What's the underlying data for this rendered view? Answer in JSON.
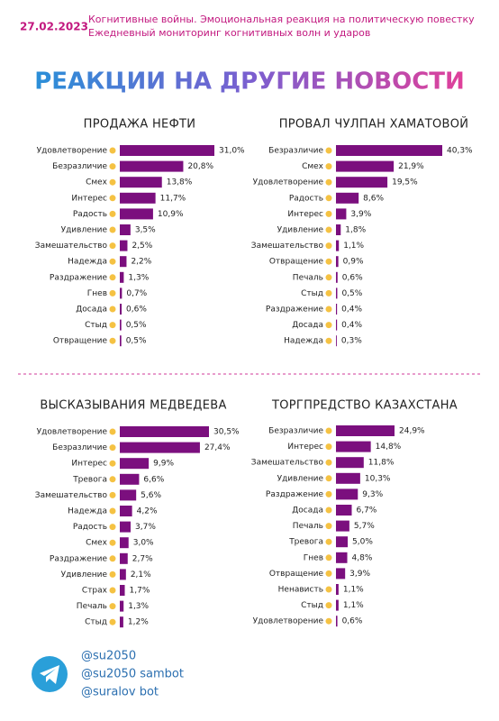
{
  "header": {
    "date": "27.02.2023",
    "line1": "Когнитивные войны. Эмоциональная реакция на политическую повестку",
    "line2": "Ежедневный мониторинг когнитивных волн и ударов"
  },
  "title": "РЕАКЦИИ НА ДРУГИЕ НОВОСТИ",
  "chart_data": [
    {
      "type": "bar",
      "orientation": "horizontal",
      "title": "ПРОДАЖА НЕФТИ",
      "color": "#7b0f7e",
      "categories": [
        "Удовлетворение",
        "Безразличие",
        "Смех",
        "Интерес",
        "Радость",
        "Удивление",
        "Замешательство",
        "Надежда",
        "Раздражение",
        "Гнев",
        "Досада",
        "Стыд",
        "Отвращение"
      ],
      "values": [
        31.0,
        20.8,
        13.8,
        11.7,
        10.9,
        3.5,
        2.5,
        2.2,
        1.3,
        0.7,
        0.6,
        0.5,
        0.5
      ],
      "value_labels": [
        "31,0%",
        "20,8%",
        "13,8%",
        "11,7%",
        "10,9%",
        "3,5%",
        "2,5%",
        "2,2%",
        "1,3%",
        "0,7%",
        "0,6%",
        "0,5%",
        "0,5%"
      ]
    },
    {
      "type": "bar",
      "orientation": "horizontal",
      "title": "ПРОВАЛ ЧУЛПАН ХАМАТОВОЙ",
      "color": "#7b0f7e",
      "categories": [
        "Безразличие",
        "Смех",
        "Удовлетворение",
        "Радость",
        "Интерес",
        "Удивление",
        "Замешательство",
        "Отвращение",
        "Печаль",
        "Стыд",
        "Раздражение",
        "Досада",
        "Надежда"
      ],
      "values": [
        40.3,
        21.9,
        19.5,
        8.6,
        3.9,
        1.8,
        1.1,
        0.9,
        0.6,
        0.5,
        0.4,
        0.4,
        0.3
      ],
      "value_labels": [
        "40,3%",
        "21,9%",
        "19,5%",
        "8,6%",
        "3,9%",
        "1,8%",
        "1,1%",
        "0,9%",
        "0,6%",
        "0,5%",
        "0,4%",
        "0,4%",
        "0,3%"
      ]
    },
    {
      "type": "bar",
      "orientation": "horizontal",
      "title": "ВЫСКАЗЫВАНИЯ МЕДВЕДЕВА",
      "color": "#7b0f7e",
      "categories": [
        "Удовлетворение",
        "Безразличие",
        "Интерес",
        "Тревога",
        "Замешательство",
        "Надежда",
        "Радость",
        "Смех",
        "Раздражение",
        "Удивление",
        "Страх",
        "Печаль",
        "Стыд"
      ],
      "values": [
        30.5,
        27.4,
        9.9,
        6.6,
        5.6,
        4.2,
        3.7,
        3.0,
        2.7,
        2.1,
        1.7,
        1.3,
        1.2
      ],
      "value_labels": [
        "30,5%",
        "27,4%",
        "9,9%",
        "6,6%",
        "5,6%",
        "4,2%",
        "3,7%",
        "3,0%",
        "2,7%",
        "2,1%",
        "1,7%",
        "1,3%",
        "1,2%"
      ]
    },
    {
      "type": "bar",
      "orientation": "horizontal",
      "title": "ТОРГПРЕДСТВО КАЗАХСТАНА",
      "color": "#7b0f7e",
      "categories": [
        "Безразличие",
        "Интерес",
        "Замешательство",
        "Удивление",
        "Раздражение",
        "Досада",
        "Печаль",
        "Тревога",
        "Гнев",
        "Отвращение",
        "Ненависть",
        "Стыд",
        "Удовлетворение"
      ],
      "values": [
        24.9,
        14.8,
        11.8,
        10.3,
        9.3,
        6.7,
        5.7,
        5.0,
        4.8,
        3.9,
        1.1,
        1.1,
        0.6
      ],
      "value_labels": [
        "24,9%",
        "14,8%",
        "11,8%",
        "10,3%",
        "9,3%",
        "6,7%",
        "5,7%",
        "5,0%",
        "4,8%",
        "3,9%",
        "1,1%",
        "1,1%",
        "0,6%"
      ]
    }
  ],
  "footer": {
    "handles": [
      "@su2050",
      "@su2050 sambot",
      "@suralov bot"
    ]
  }
}
